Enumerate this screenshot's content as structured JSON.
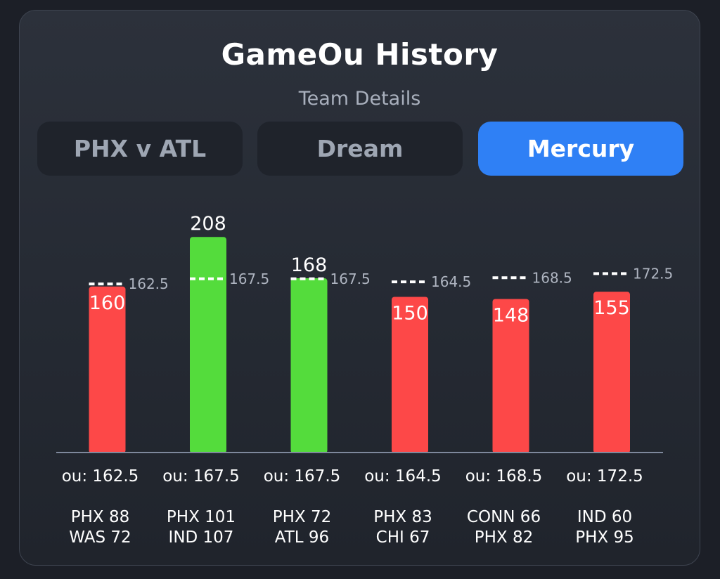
{
  "header": {
    "title": "GameOu History",
    "subtitle": "Team Details"
  },
  "tabs": [
    {
      "label": "PHX v ATL",
      "active": false
    },
    {
      "label": "Dream",
      "active": false
    },
    {
      "label": "Mercury",
      "active": true
    }
  ],
  "colors": {
    "over": "#54dc3c",
    "under": "#fd4848",
    "accent": "#2f80f5",
    "line": "#ffffff"
  },
  "chart_data": {
    "type": "bar",
    "title": "",
    "xlabel": "",
    "ylabel": "",
    "ylim": [
      0,
      240
    ],
    "categories": [
      "PHX 88 WAS 72",
      "PHX 101 IND 107",
      "PHX 72 ATL 96",
      "PHX 83 CHI 67",
      "CONN 66 PHX 82",
      "IND 60 PHX 95"
    ],
    "series": [
      {
        "values": [
          160,
          208,
          168,
          150,
          148,
          155
        ]
      }
    ],
    "ou_lines": [
      162.5,
      167.5,
      167.5,
      164.5,
      168.5,
      172.5
    ],
    "ou_labels": [
      "ou: 162.5",
      "ou: 167.5",
      "ou: 167.5",
      "ou: 164.5",
      "ou: 168.5",
      "ou: 172.5"
    ],
    "games": [
      [
        "PHX 88",
        "WAS 72"
      ],
      [
        "PHX 101",
        "IND 107"
      ],
      [
        "PHX 72",
        "ATL 96"
      ],
      [
        "PHX 83",
        "CHI 67"
      ],
      [
        "CONN 66",
        "PHX 82"
      ],
      [
        "IND 60",
        "PHX 95"
      ]
    ],
    "grid": false,
    "legend": "none"
  }
}
